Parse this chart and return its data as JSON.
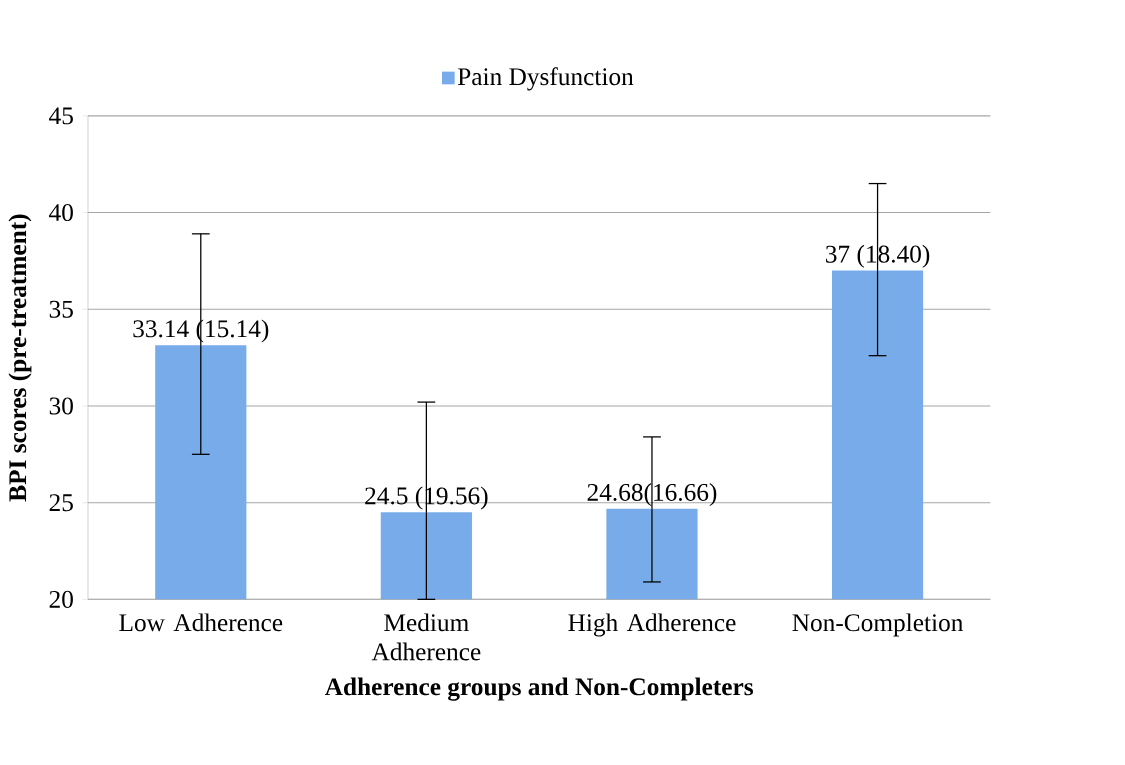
{
  "chart_data": {
    "type": "bar",
    "xlabel": "Adherence groups and Non-Completers",
    "ylabel": "BPI scores (pre-treatment)",
    "categories": [
      "Low Adherence",
      "Medium Adherence",
      "High Adherence",
      "Non-Completion"
    ],
    "series": [
      {
        "name": "Pain Dysfunction",
        "color": "#78abea",
        "values": [
          33.14,
          24.5,
          24.68,
          37
        ],
        "errors": [
          [
            27.5,
            38.9
          ],
          [
            20,
            30.2
          ],
          [
            20.9,
            28.4
          ],
          [
            32.6,
            41.5
          ]
        ],
        "value_labels": [
          "33.14 (15.14)",
          "24.5 (19.56)",
          "24.68(16.66)",
          "37 (18.40)"
        ]
      }
    ],
    "ylim": [
      20,
      45
    ],
    "yticks": [
      20,
      25,
      30,
      35,
      40,
      45
    ],
    "grid": "y",
    "legend": "top"
  }
}
